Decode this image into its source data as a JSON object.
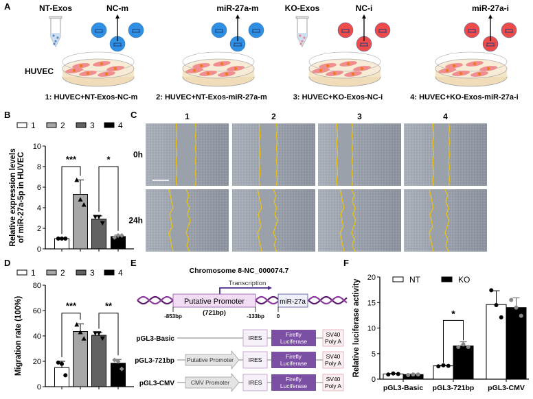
{
  "panel_labels": {
    "a": "A",
    "b": "B",
    "c": "C",
    "d": "D",
    "e": "E",
    "f": "F"
  },
  "panel_a": {
    "row_label": "HUVEC",
    "groups": [
      {
        "exos": "NT-Exos",
        "treatment": "NC-m",
        "caption": "1: HUVEC+NT-Exos-NC-m",
        "vesicle_color": "#2f8fe3",
        "tube_dot_color": "#5b86c2"
      },
      {
        "exos": "",
        "treatment": "miR-27a-m",
        "caption": "2: HUVEC+NT-Exos-miR-27a-m",
        "vesicle_color": "#2f8fe3"
      },
      {
        "exos": "KO-Exos",
        "treatment": "NC-i",
        "caption": "3: HUVEC+KO-Exos-NC-i",
        "vesicle_color": "#ee4b4b",
        "tube_dot_color": "#e58a8a"
      },
      {
        "exos": "",
        "treatment": "miR-27a-i",
        "caption": "4: HUVEC+KO-Exos-miR-27a-i",
        "vesicle_color": "#ee4b4b"
      }
    ]
  },
  "panel_c": {
    "columns": [
      "1",
      "2",
      "3",
      "4"
    ],
    "rows": [
      "0h",
      "24h"
    ],
    "edge_color": "#f2c500"
  },
  "panel_e": {
    "title": "Chromosome 8-NC_000074.7",
    "transcription": "Transcription",
    "promoter": "Putative Promoter",
    "promoter_length": "(721bp)",
    "mirna": "miR-27a",
    "positions": [
      "-853bp",
      "-133bp",
      "0"
    ],
    "constructs": [
      {
        "name": "pGL3-Basic",
        "promoter": ""
      },
      {
        "name": "pGL3-721bp",
        "promoter": "Putative Promoter"
      },
      {
        "name": "pGL3-CMV",
        "promoter": "CMV Promoter"
      }
    ],
    "ires": "IRES",
    "luciferase": [
      "Firefly",
      "Luciferase"
    ],
    "polya": [
      "SV40",
      "Poly A"
    ],
    "dna_color": "#5a1a6b",
    "luciferase_color": "#7b4fa3"
  },
  "chart_data": [
    {
      "panel": "B",
      "type": "bar",
      "categories": [
        "1",
        "2",
        "3",
        "4"
      ],
      "values": [
        1.0,
        5.3,
        2.9,
        1.2
      ],
      "error": [
        0.05,
        1.4,
        0.3,
        0.15
      ],
      "points": [
        [
          1.0,
          1.0,
          1.0
        ],
        [
          6.7,
          4.8,
          4.3
        ],
        [
          3.1,
          3.1,
          2.5
        ],
        [
          1.1,
          1.3,
          1.3
        ]
      ],
      "colors": [
        "#ffffff",
        "#a6a6a6",
        "#626262",
        "#000000"
      ],
      "ylabel": [
        "Relative expression levels",
        "of miR-27a-5p in HUVEC"
      ],
      "ylim": [
        0,
        10
      ],
      "yticks": [
        0,
        2,
        4,
        6,
        8,
        10
      ],
      "legend": [
        "1",
        "2",
        "3",
        "4"
      ],
      "legend_position": "top",
      "significance": [
        {
          "from": 0,
          "to": 1,
          "y": 8,
          "label": "***"
        },
        {
          "from": 2,
          "to": 3,
          "y": 8,
          "label": "*"
        }
      ]
    },
    {
      "panel": "D",
      "type": "bar",
      "categories": [
        "1",
        "2",
        "3",
        "4"
      ],
      "values": [
        15,
        43.5,
        40.5,
        18.5
      ],
      "error": [
        5,
        6,
        2,
        3
      ],
      "points": [
        [
          19,
          18,
          9
        ],
        [
          49,
          43,
          38
        ],
        [
          42,
          42,
          38
        ],
        [
          21,
          20,
          14
        ]
      ],
      "colors": [
        "#ffffff",
        "#a6a6a6",
        "#626262",
        "#000000"
      ],
      "ylabel": [
        "Migration rate (100%)"
      ],
      "ylim": [
        0,
        80
      ],
      "yticks": [
        0,
        20,
        40,
        60,
        80
      ],
      "legend": [
        "1",
        "2",
        "3",
        "4"
      ],
      "legend_position": "top",
      "significance": [
        {
          "from": 0,
          "to": 1,
          "y": 58,
          "label": "***"
        },
        {
          "from": 2,
          "to": 3,
          "y": 58,
          "label": "**"
        }
      ]
    },
    {
      "panel": "F",
      "type": "bar",
      "categories": [
        "pGL3-Basic",
        "pGL3-721bp",
        "pGL3-CMV"
      ],
      "series": [
        {
          "name": "NT",
          "values": [
            1.0,
            2.6,
            14.6
          ],
          "error": [
            0.1,
            0.1,
            2.7
          ],
          "points": [
            [
              0.9,
              1.1,
              1.0
            ],
            [
              2.5,
              2.7,
              2.6
            ],
            [
              17.4,
              14.5,
              12.1
            ]
          ],
          "color": "#ffffff"
        },
        {
          "name": "KO",
          "values": [
            0.9,
            6.5,
            14.0
          ],
          "error": [
            0.1,
            0.8,
            1.9
          ],
          "points": [
            [
              0.8,
              0.9,
              0.9
            ],
            [
              6.3,
              6.8,
              6.3
            ],
            [
              15.5,
              14.0,
              12.4
            ]
          ],
          "color": "#000000"
        }
      ],
      "ylabel": [
        "Relative luciferase activity"
      ],
      "ylim": [
        0,
        20
      ],
      "yticks": [
        0,
        5,
        10,
        15,
        20
      ],
      "legend_position": "top-left",
      "significance": [
        {
          "category": 1,
          "y": 11.5,
          "label": "*"
        }
      ]
    }
  ]
}
